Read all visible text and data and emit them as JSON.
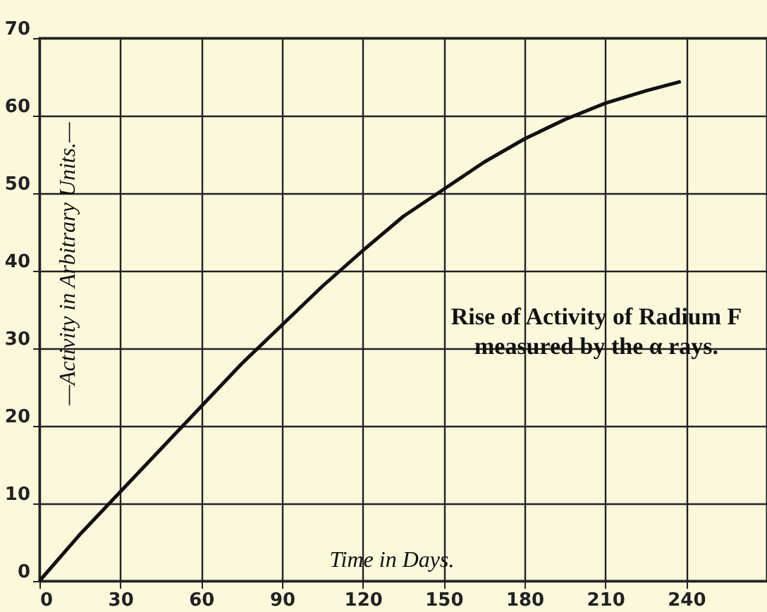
{
  "chart_data": {
    "type": "line",
    "title": "Rise of Activity of Radium F\nmeasured by the α rays.",
    "xlabel": "Time in Days.",
    "ylabel": "—Activity in Arbitrary Units.—",
    "x": [
      0,
      15,
      30,
      45,
      60,
      75,
      90,
      105,
      120,
      135,
      150,
      165,
      180,
      195,
      210,
      225,
      238
    ],
    "series": [
      {
        "color": "#111111",
        "values": [
          0,
          6,
          11.5,
          17,
          22.5,
          28,
          33,
          38,
          42.6,
          47,
          50.5,
          54,
          57,
          59.5,
          61.6,
          63.2,
          64.4
        ]
      }
    ],
    "xlim": [
      0,
      270
    ],
    "ylim": [
      0,
      70
    ],
    "xticks": [
      0,
      30,
      60,
      90,
      120,
      150,
      180,
      210,
      240
    ],
    "yticks": [
      0,
      10,
      20,
      30,
      40,
      50,
      60,
      70
    ],
    "grid": true,
    "marker": "none",
    "line_style": "solid"
  }
}
